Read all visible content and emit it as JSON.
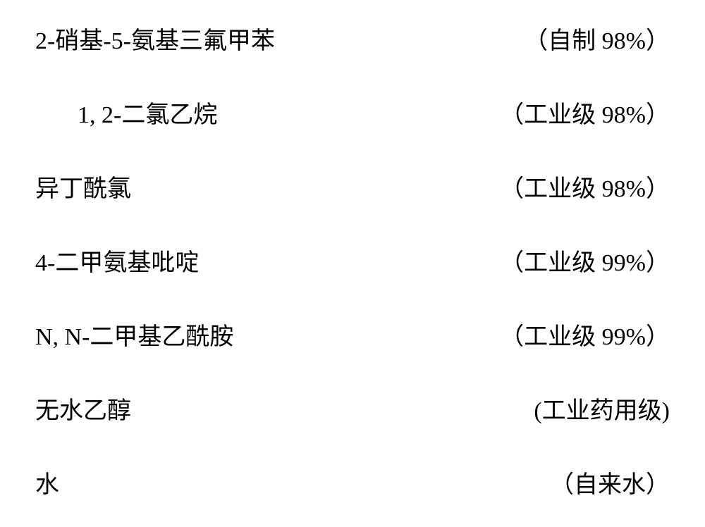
{
  "table": {
    "font_family": "SimSun",
    "font_size": 34,
    "text_color": "#000000",
    "background_color": "#ffffff",
    "row_gap": 56,
    "rows": [
      {
        "chemical": "2-硝基-5-氨基三氟甲苯",
        "spec": "（自制 98%）",
        "indent": false
      },
      {
        "chemical": "1, 2-二氯乙烷",
        "spec": "（工业级 98%）",
        "indent": true
      },
      {
        "chemical": "异丁酰氯",
        "spec": "（工业级 98%）",
        "indent": false
      },
      {
        "chemical": "4-二甲氨基吡啶",
        "spec": "（工业级 99%）",
        "indent": false
      },
      {
        "chemical": "N, N-二甲基乙酰胺",
        "spec": "（工业级 99%）",
        "indent": false
      },
      {
        "chemical": "无水乙醇",
        "spec": "(工业药用级)",
        "indent": false
      },
      {
        "chemical": "水",
        "spec": "（自来水）",
        "indent": false
      }
    ]
  }
}
